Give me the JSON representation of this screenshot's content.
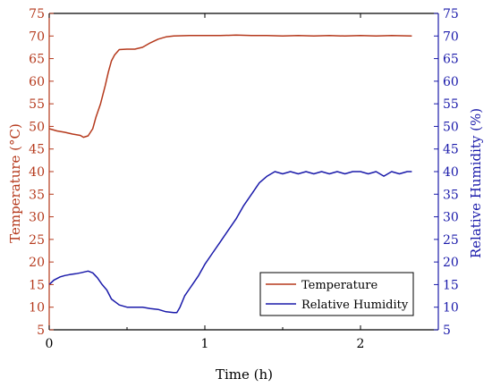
{
  "chart_data": {
    "type": "line",
    "xlabel": "Time (h)",
    "ylabel_left": "Temperature (°C)",
    "ylabel_right": "Relative Humidity (%)",
    "xlim": [
      0,
      2.5
    ],
    "ylim_left": [
      5,
      75
    ],
    "ylim_right": [
      5,
      75
    ],
    "x_ticks": [
      0,
      1,
      2
    ],
    "y_ticks": [
      5,
      10,
      15,
      20,
      25,
      30,
      35,
      40,
      45,
      50,
      55,
      60,
      65,
      70,
      75
    ],
    "grid": false,
    "legend_position": "bottom-right",
    "colors": {
      "temperature": "#b5391c",
      "humidity": "#1a1aaa",
      "axis": "#000000"
    },
    "series": [
      {
        "name": "Temperature",
        "axis": "left",
        "x": [
          0,
          0.05,
          0.1,
          0.15,
          0.2,
          0.22,
          0.25,
          0.28,
          0.3,
          0.33,
          0.36,
          0.38,
          0.4,
          0.42,
          0.45,
          0.5,
          0.55,
          0.6,
          0.65,
          0.7,
          0.75,
          0.8,
          0.9,
          1.0,
          1.1,
          1.2,
          1.3,
          1.4,
          1.5,
          1.6,
          1.7,
          1.8,
          1.9,
          2.0,
          2.1,
          2.2,
          2.33
        ],
        "values": [
          49.5,
          49.0,
          48.7,
          48.3,
          48.0,
          47.6,
          47.9,
          49.5,
          52.0,
          55.0,
          59.0,
          62.0,
          64.5,
          65.8,
          67.0,
          67.1,
          67.1,
          67.5,
          68.5,
          69.3,
          69.8,
          70.0,
          70.1,
          70.1,
          70.1,
          70.2,
          70.1,
          70.1,
          70.0,
          70.1,
          70.0,
          70.1,
          70.0,
          70.1,
          70.0,
          70.1,
          70.0
        ]
      },
      {
        "name": "Relative Humidity",
        "axis": "right",
        "x": [
          0,
          0.03,
          0.07,
          0.1,
          0.13,
          0.17,
          0.2,
          0.25,
          0.28,
          0.31,
          0.34,
          0.37,
          0.4,
          0.45,
          0.5,
          0.55,
          0.6,
          0.65,
          0.7,
          0.75,
          0.8,
          0.82,
          0.84,
          0.87,
          0.9,
          0.93,
          0.96,
          1.0,
          1.05,
          1.1,
          1.15,
          1.2,
          1.25,
          1.3,
          1.35,
          1.4,
          1.45,
          1.5,
          1.55,
          1.6,
          1.65,
          1.7,
          1.75,
          1.8,
          1.85,
          1.9,
          1.95,
          2.0,
          2.05,
          2.1,
          2.15,
          2.2,
          2.25,
          2.3,
          2.33
        ],
        "values": [
          15.0,
          16.0,
          16.7,
          17.0,
          17.2,
          17.4,
          17.6,
          18.0,
          17.6,
          16.5,
          15.0,
          13.8,
          11.8,
          10.5,
          10.0,
          10.0,
          10.0,
          9.7,
          9.5,
          9.0,
          8.8,
          8.8,
          10.0,
          12.5,
          14.0,
          15.5,
          17.0,
          19.5,
          22.0,
          24.5,
          27.0,
          29.5,
          32.5,
          35.0,
          37.5,
          39.0,
          40.0,
          39.5,
          40.0,
          39.5,
          40.0,
          39.5,
          40.0,
          39.5,
          40.0,
          39.5,
          40.0,
          40.0,
          39.5,
          40.0,
          39.0,
          40.0,
          39.5,
          40.0,
          40.0
        ]
      }
    ]
  }
}
